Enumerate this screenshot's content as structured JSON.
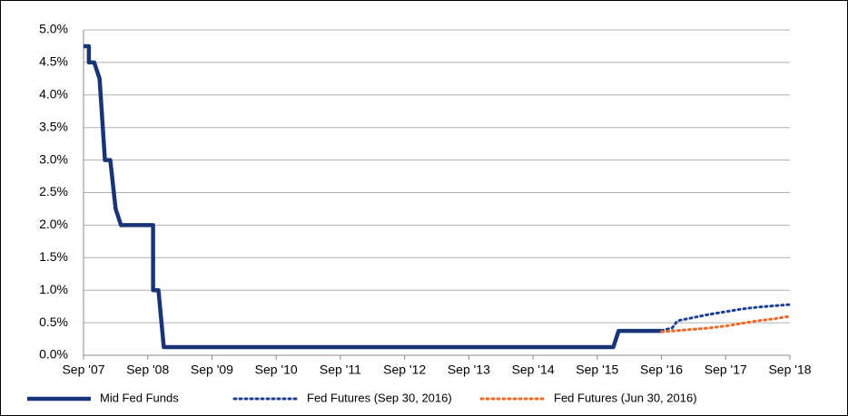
{
  "chart_data": {
    "type": "line",
    "xlim": [
      "2007-09",
      "2018-09"
    ],
    "xticks": [
      {
        "value": "2007-09",
        "label": "Sep '07"
      },
      {
        "value": "2008-09",
        "label": "Sep '08"
      },
      {
        "value": "2009-09",
        "label": "Sep '09"
      },
      {
        "value": "2010-09",
        "label": "Sep '10"
      },
      {
        "value": "2011-09",
        "label": "Sep '11"
      },
      {
        "value": "2012-09",
        "label": "Sep '12"
      },
      {
        "value": "2013-09",
        "label": "Sep '13"
      },
      {
        "value": "2014-09",
        "label": "Sep '14"
      },
      {
        "value": "2015-09",
        "label": "Sep '15"
      },
      {
        "value": "2016-09",
        "label": "Sep '16"
      },
      {
        "value": "2017-09",
        "label": "Sep '17"
      },
      {
        "value": "2018-09",
        "label": "Sep '18"
      }
    ],
    "ylim": [
      0,
      5
    ],
    "yticks": [
      {
        "value": 0,
        "label": "0.0%"
      },
      {
        "value": 0.5,
        "label": "0.5%"
      },
      {
        "value": 1,
        "label": "1.0%"
      },
      {
        "value": 1.5,
        "label": "1.5%"
      },
      {
        "value": 2,
        "label": "2.0%"
      },
      {
        "value": 2.5,
        "label": "2.5%"
      },
      {
        "value": 3,
        "label": "3.0%"
      },
      {
        "value": 3.5,
        "label": "3.5%"
      },
      {
        "value": 4,
        "label": "4.0%"
      },
      {
        "value": 4.5,
        "label": "4.5%"
      },
      {
        "value": 5,
        "label": "5.0%"
      }
    ],
    "grid": true,
    "legend": "bottom",
    "series": [
      {
        "name": "Mid Fed Funds",
        "color": "#1a3478",
        "style": "solid",
        "x": [
          "2007-09",
          "2007-10",
          "2007-10",
          "2007-11",
          "2007-12",
          "2008-01",
          "2008-01",
          "2008-02",
          "2008-03",
          "2008-04",
          "2008-04",
          "2008-10",
          "2008-10",
          "2008-11",
          "2008-12",
          "2015-12",
          "2016-01",
          "2016-09"
        ],
        "values": [
          4.75,
          4.75,
          4.5,
          4.5,
          4.25,
          3.0,
          3.0,
          3.0,
          2.25,
          2.0,
          2.0,
          2.0,
          1.0,
          1.0,
          0.125,
          0.125,
          0.375,
          0.375
        ]
      },
      {
        "name": "Fed Futures (Sep 30, 2016)",
        "color": "#1c3f8f",
        "style": "dotted",
        "x": [
          "2016-09",
          "2016-11",
          "2016-12",
          "2017-03",
          "2017-06",
          "2017-09",
          "2017-12",
          "2018-03",
          "2018-06",
          "2018-09"
        ],
        "values": [
          0.38,
          0.42,
          0.53,
          0.58,
          0.63,
          0.67,
          0.71,
          0.74,
          0.76,
          0.78
        ]
      },
      {
        "name": "Fed Futures (Jun 30, 2016)",
        "color": "#f06a25",
        "style": "dotted",
        "x": [
          "2016-09",
          "2016-12",
          "2017-03",
          "2017-06",
          "2017-09",
          "2017-12",
          "2018-03",
          "2018-06",
          "2018-09"
        ],
        "values": [
          0.36,
          0.38,
          0.4,
          0.42,
          0.45,
          0.49,
          0.53,
          0.56,
          0.6
        ]
      }
    ]
  }
}
